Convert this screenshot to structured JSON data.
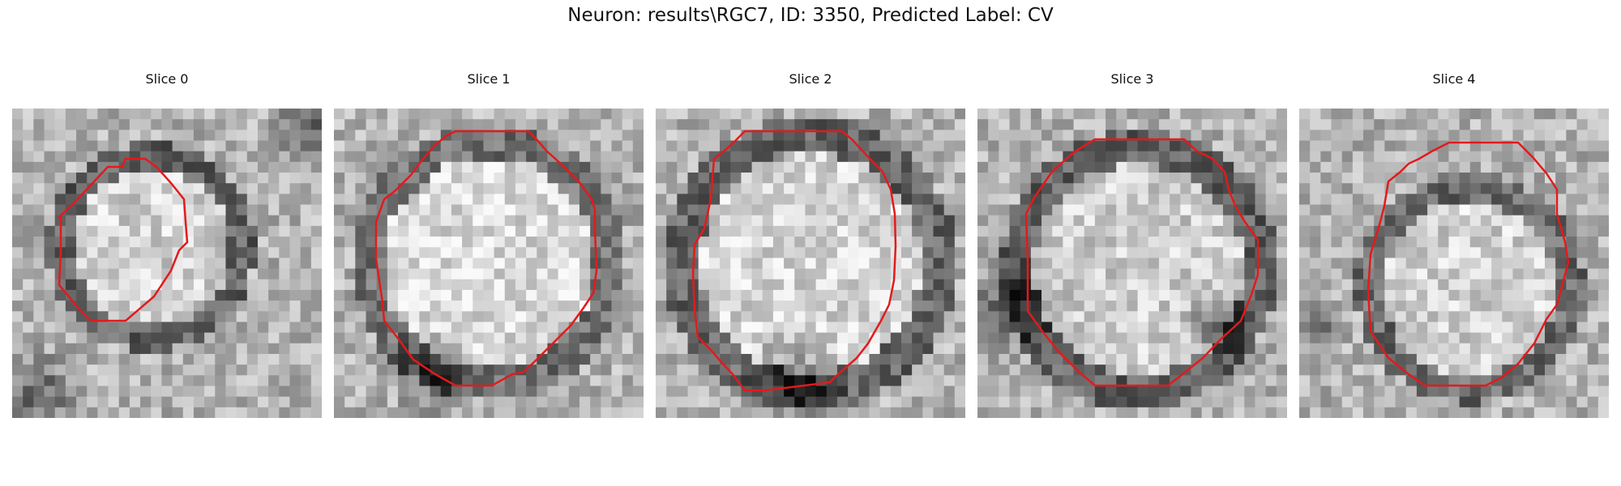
{
  "figure": {
    "title": "Neuron: results\\RGC7, ID: 3350, Predicted Label: CV"
  },
  "panels": [
    {
      "title": "Slice 0"
    },
    {
      "title": "Slice 1"
    },
    {
      "title": "Slice 2"
    },
    {
      "title": "Slice 3"
    },
    {
      "title": "Slice 4"
    }
  ],
  "style": {
    "contour_color": "#e31a1c",
    "colormap": "grayscale"
  }
}
